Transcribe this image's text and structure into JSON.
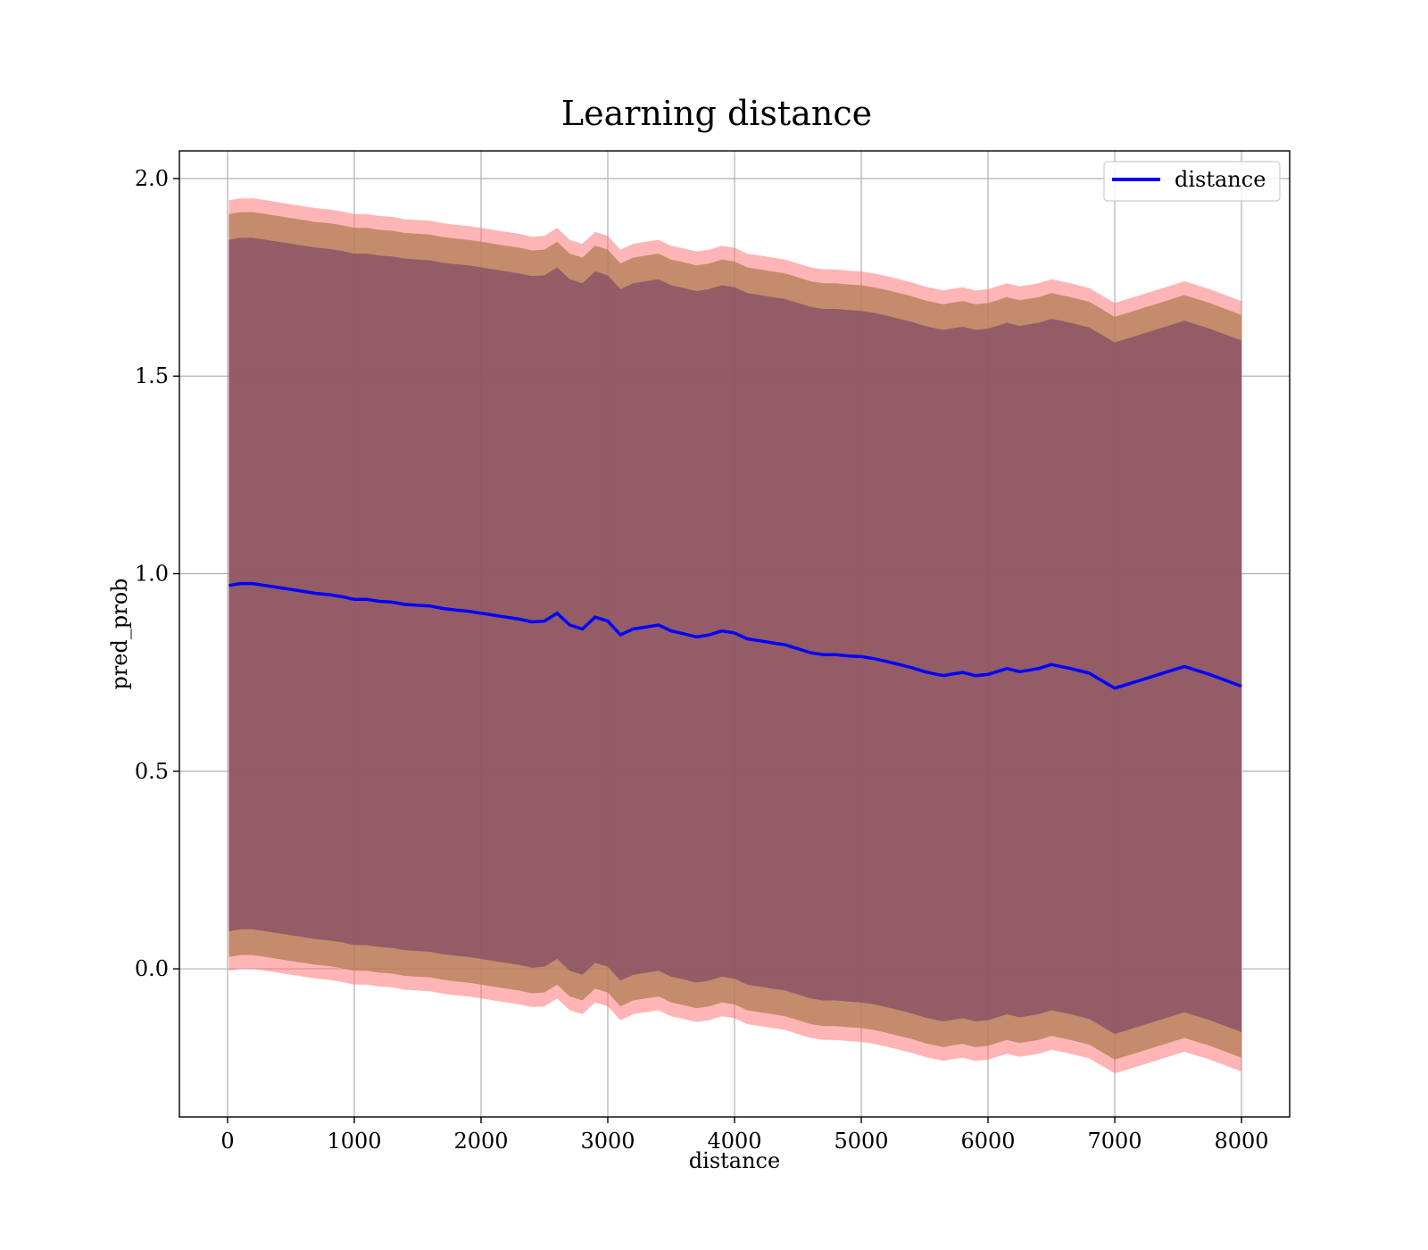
{
  "chart_data": {
    "type": "line",
    "title": "Learning distance",
    "xlabel": "distance",
    "ylabel": "pred_prob",
    "xlim": [
      -380,
      8380
    ],
    "ylim": [
      -0.375,
      2.07
    ],
    "xticks": [
      0,
      1000,
      2000,
      3000,
      4000,
      5000,
      6000,
      7000,
      8000
    ],
    "yticks": [
      0.0,
      0.5,
      1.0,
      1.5,
      2.0
    ],
    "ytick_labels": [
      "0.0",
      "0.5",
      "1.0",
      "1.5",
      "2.0"
    ],
    "grid": true,
    "legend": {
      "placement": "top-right",
      "entries": [
        "distance"
      ]
    },
    "colors": {
      "line": "#0000ff",
      "band_outer": "#ff6b6b",
      "band_middle": "#b07e55",
      "band_inner": "#8b5366"
    },
    "series": [
      {
        "name": "distance",
        "x": [
          10,
          100,
          200,
          300,
          400,
          500,
          600,
          700,
          800,
          900,
          1000,
          1100,
          1200,
          1300,
          1400,
          1500,
          1600,
          1700,
          1800,
          1900,
          2000,
          2100,
          2200,
          2300,
          2400,
          2500,
          2600,
          2700,
          2800,
          2900,
          3000,
          3100,
          3200,
          3300,
          3400,
          3500,
          3600,
          3700,
          3800,
          3900,
          4000,
          4100,
          4200,
          4300,
          4400,
          4500,
          4600,
          4700,
          4800,
          4900,
          5000,
          5100,
          5200,
          5300,
          5400,
          5500,
          5600,
          5650,
          5700,
          5800,
          5900,
          6000,
          6100,
          6150,
          6250,
          6400,
          6500,
          6650,
          6800,
          7000,
          7200,
          7400,
          7550,
          7750,
          8000
        ],
        "values": [
          0.97,
          0.975,
          0.975,
          0.97,
          0.965,
          0.96,
          0.955,
          0.95,
          0.947,
          0.942,
          0.935,
          0.935,
          0.93,
          0.928,
          0.922,
          0.92,
          0.918,
          0.912,
          0.908,
          0.905,
          0.9,
          0.895,
          0.89,
          0.885,
          0.878,
          0.88,
          0.9,
          0.87,
          0.86,
          0.89,
          0.88,
          0.845,
          0.86,
          0.865,
          0.87,
          0.855,
          0.848,
          0.84,
          0.845,
          0.855,
          0.85,
          0.835,
          0.83,
          0.825,
          0.82,
          0.81,
          0.8,
          0.795,
          0.795,
          0.792,
          0.79,
          0.785,
          0.778,
          0.77,
          0.762,
          0.752,
          0.745,
          0.742,
          0.745,
          0.75,
          0.742,
          0.745,
          0.755,
          0.76,
          0.752,
          0.76,
          0.77,
          0.76,
          0.748,
          0.71,
          0.73,
          0.75,
          0.765,
          0.745,
          0.715
        ]
      }
    ],
    "bands": [
      {
        "level": "outer",
        "half_width": 0.975
      },
      {
        "level": "middle",
        "half_width": 0.94
      },
      {
        "level": "inner",
        "half_width": 0.875
      }
    ]
  }
}
